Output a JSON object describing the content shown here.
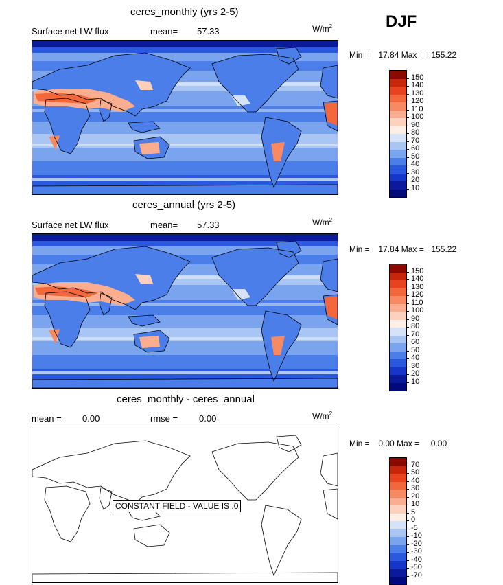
{
  "season": "DJF",
  "panels": [
    {
      "title": "ceres_monthly (yrs 2-5)",
      "variable": "Surface net LW flux",
      "stat1_label": "mean=",
      "stat1_value": "57.33",
      "units_base": "W/m",
      "units_exp": "2",
      "min_label": "Min =",
      "min_value": "17.84",
      "max_label": "Max =",
      "max_value": "155.22",
      "legend": [
        "150",
        "140",
        "130",
        "120",
        "110",
        "100",
        "90",
        "80",
        "70",
        "60",
        "50",
        "40",
        "30",
        "20",
        "10"
      ]
    },
    {
      "title": "ceres_annual (yrs 2-5)",
      "variable": "Surface net LW flux",
      "stat1_label": "mean=",
      "stat1_value": "57.33",
      "units_base": "W/m",
      "units_exp": "2",
      "min_label": "Min =",
      "min_value": "17.84",
      "max_label": "Max =",
      "max_value": "155.22",
      "legend": [
        "150",
        "140",
        "130",
        "120",
        "110",
        "100",
        "90",
        "80",
        "70",
        "60",
        "50",
        "40",
        "30",
        "20",
        "10"
      ]
    },
    {
      "title": "ceres_monthly - ceres_annual",
      "stat1_label": "mean =",
      "stat1_value": "0.00",
      "stat2_label": "rmse =",
      "stat2_value": "0.00",
      "units_base": "W/m",
      "units_exp": "2",
      "min_label": "Min =",
      "min_value": "0.00",
      "max_label": "Max =",
      "max_value": "0.00",
      "legend": [
        "70",
        "50",
        "40",
        "30",
        "20",
        "10",
        "5",
        "0",
        "-5",
        "-10",
        "-20",
        "-30",
        "-40",
        "-50",
        "-70"
      ],
      "constant_label": "CONSTANT FIELD - VALUE IS .0"
    }
  ],
  "colors": {
    "scale": [
      "#8b0a00",
      "#c8260a",
      "#e8431e",
      "#f2673c",
      "#f78a62",
      "#fbae8f",
      "#fdd1bd",
      "#fdeee6",
      "#d5e2f8",
      "#a9c5f4",
      "#7aa4ee",
      "#4b7ee8",
      "#2a59e0",
      "#1536c8",
      "#0a1a9a",
      "#000a7a"
    ],
    "land_line": "#000000",
    "ocean_base": "#4a7de6"
  }
}
